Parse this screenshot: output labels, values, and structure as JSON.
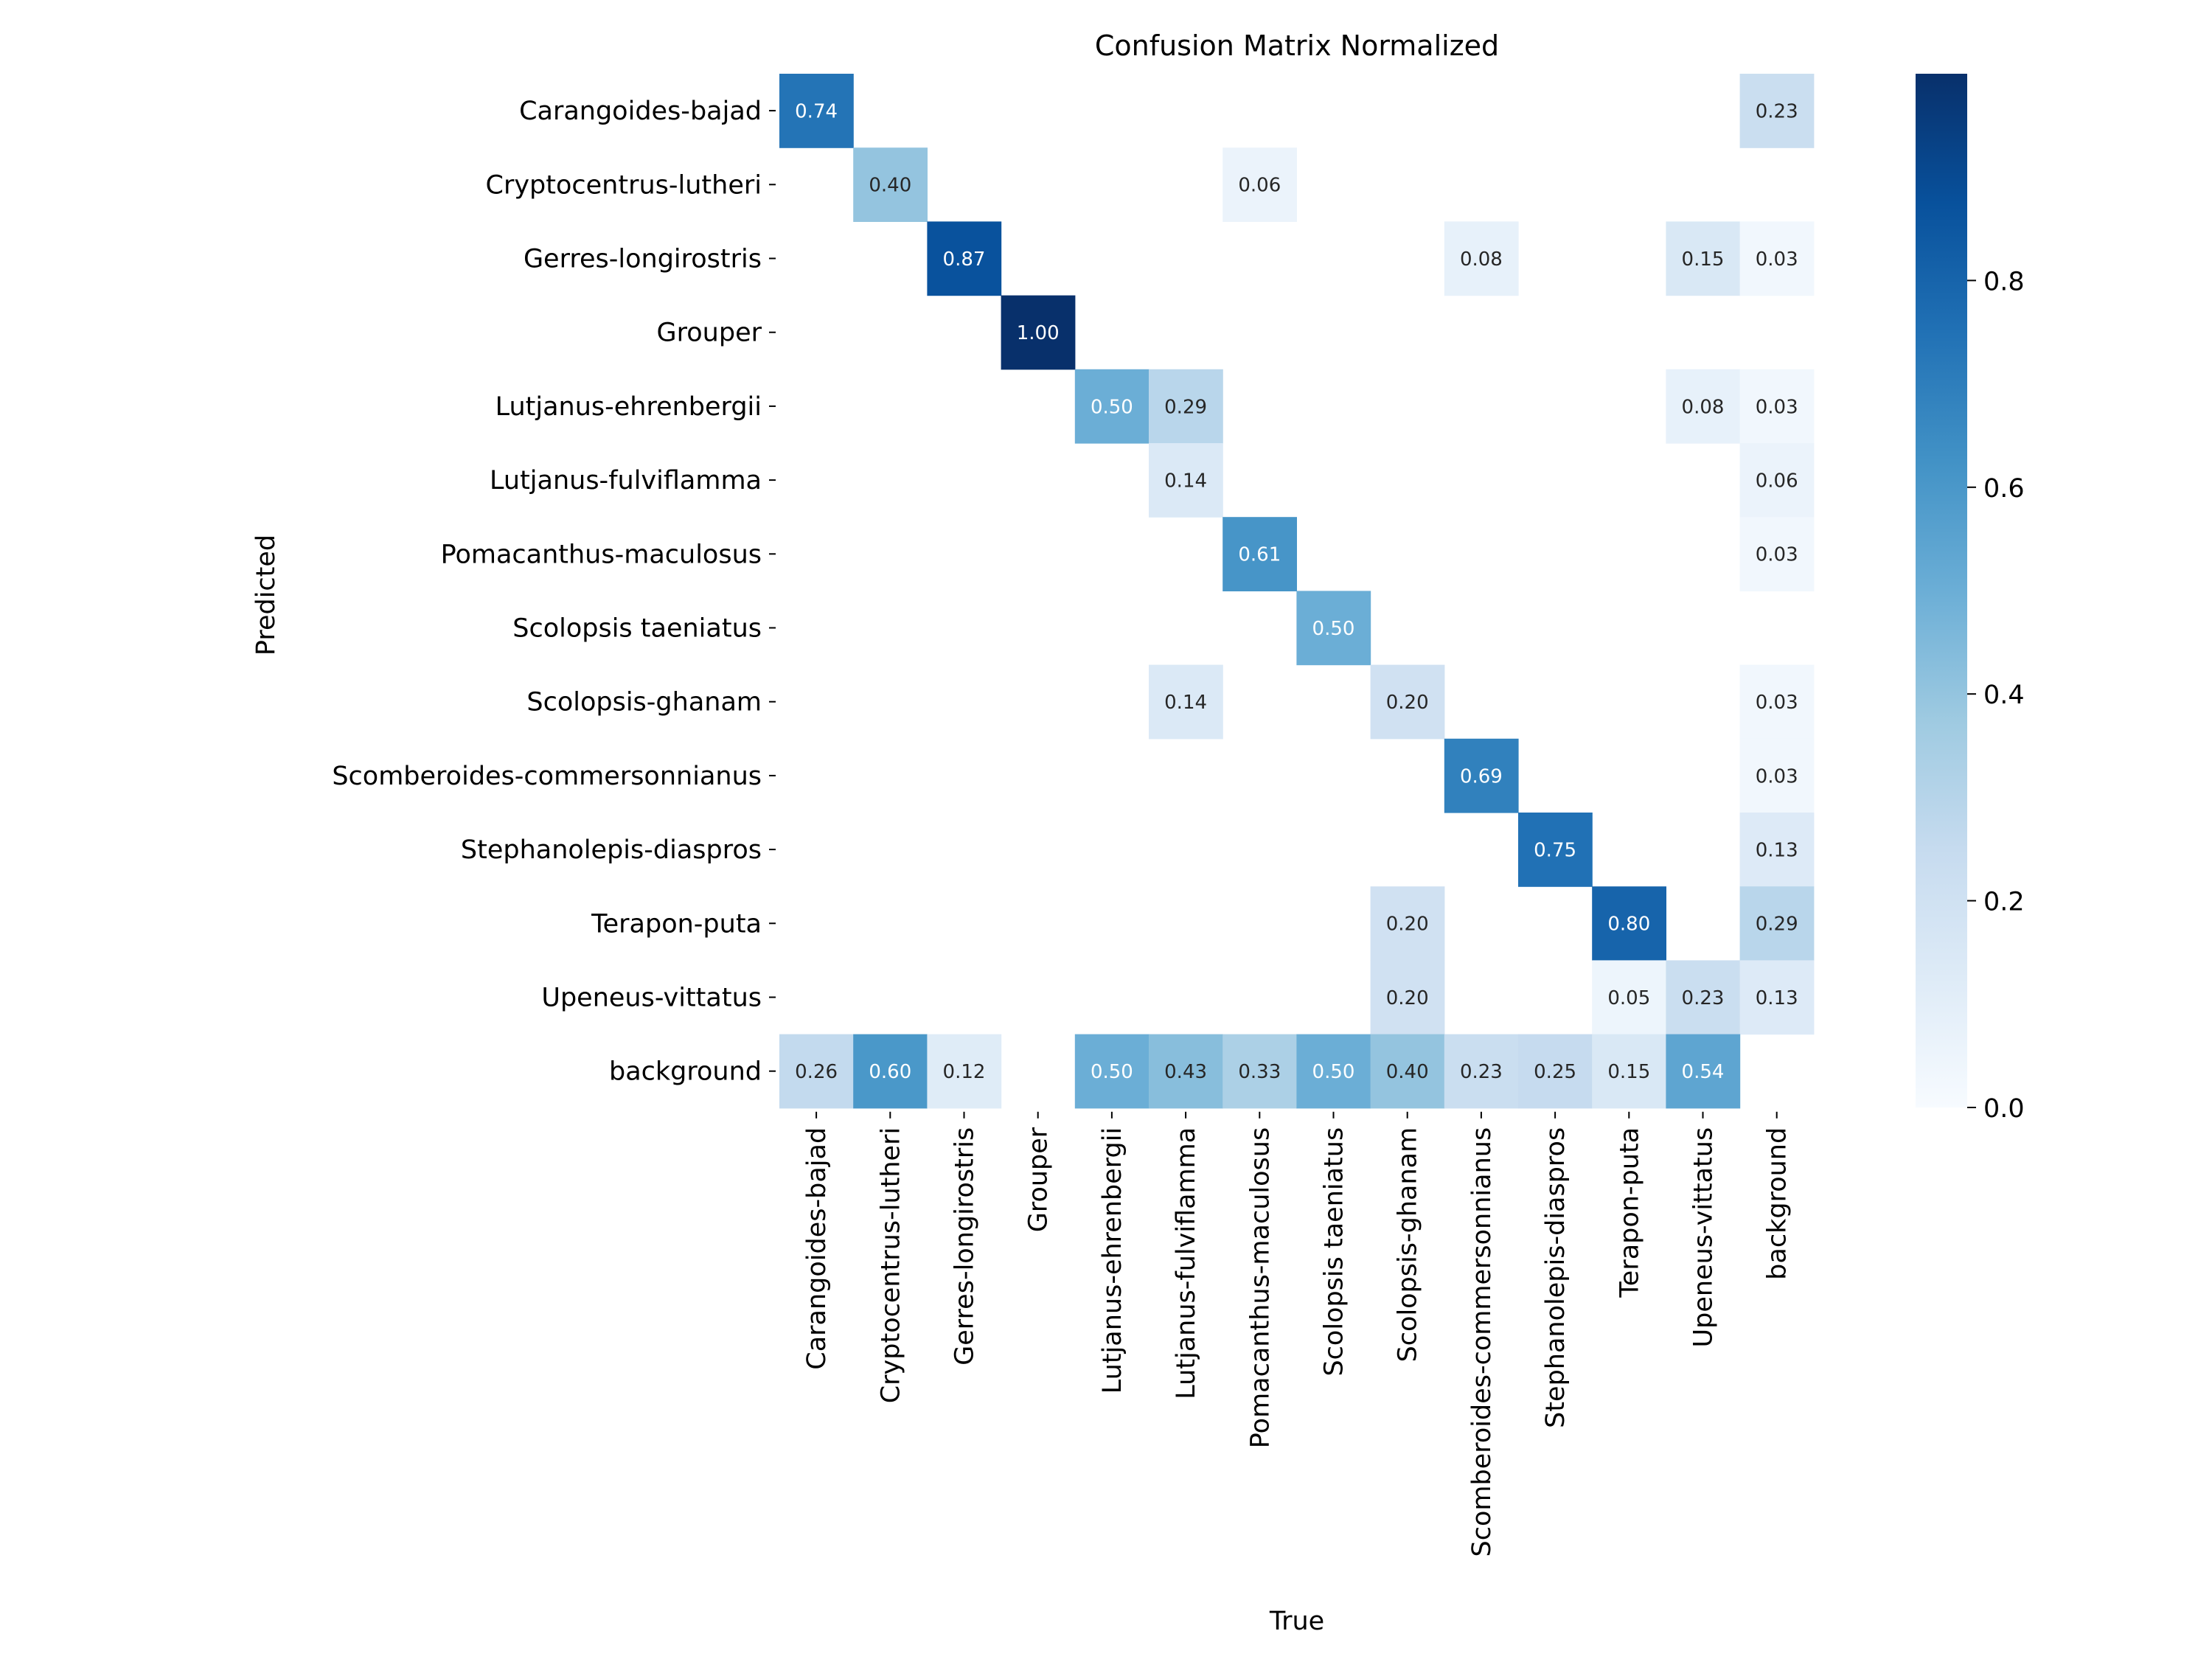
{
  "chart_data": {
    "type": "heatmap",
    "title": "Confusion Matrix Normalized",
    "xlabel": "True",
    "ylabel": "Predicted",
    "colormap": "Blues",
    "colors": {
      "low": "#f7fbff",
      "high": "#08306b"
    },
    "vmin": 0.0,
    "vmax": 1.0,
    "rows": [
      "Carangoides-bajad",
      "Cryptocentrus-lutheri",
      "Gerres-longirostris",
      "Grouper",
      "Lutjanus-ehrenbergii",
      "Lutjanus-fulviflamma",
      "Pomacanthus-maculosus",
      "Scolopsis taeniatus",
      "Scolopsis-ghanam",
      "Scomberoides-commersonnianus",
      "Stephanolepis-diaspros",
      "Terapon-puta",
      "Upeneus-vittatus",
      "background"
    ],
    "columns": [
      "Carangoides-bajad",
      "Cryptocentrus-lutheri",
      "Gerres-longirostris",
      "Grouper",
      "Lutjanus-ehrenbergii",
      "Lutjanus-fulviflamma",
      "Pomacanthus-maculosus",
      "Scolopsis taeniatus",
      "Scolopsis-ghanam",
      "Scomberoides-commersonnianus",
      "Stephanolepis-diaspros",
      "Terapon-puta",
      "Upeneus-vittatus",
      "background"
    ],
    "values": [
      [
        0.74,
        null,
        null,
        null,
        null,
        null,
        null,
        null,
        null,
        null,
        null,
        null,
        null,
        0.23
      ],
      [
        null,
        0.4,
        null,
        null,
        null,
        null,
        0.06,
        null,
        null,
        null,
        null,
        null,
        null,
        null
      ],
      [
        null,
        null,
        0.87,
        null,
        null,
        null,
        null,
        null,
        null,
        0.08,
        null,
        null,
        0.15,
        0.03
      ],
      [
        null,
        null,
        null,
        1.0,
        null,
        null,
        null,
        null,
        null,
        null,
        null,
        null,
        null,
        null
      ],
      [
        null,
        null,
        null,
        null,
        0.5,
        0.29,
        null,
        null,
        null,
        null,
        null,
        null,
        0.08,
        0.03
      ],
      [
        null,
        null,
        null,
        null,
        null,
        0.14,
        null,
        null,
        null,
        null,
        null,
        null,
        null,
        0.06
      ],
      [
        null,
        null,
        null,
        null,
        null,
        null,
        0.61,
        null,
        null,
        null,
        null,
        null,
        null,
        0.03
      ],
      [
        null,
        null,
        null,
        null,
        null,
        null,
        null,
        0.5,
        null,
        null,
        null,
        null,
        null,
        null
      ],
      [
        null,
        null,
        null,
        null,
        null,
        0.14,
        null,
        null,
        0.2,
        null,
        null,
        null,
        null,
        0.03
      ],
      [
        null,
        null,
        null,
        null,
        null,
        null,
        null,
        null,
        null,
        0.69,
        null,
        null,
        null,
        0.03
      ],
      [
        null,
        null,
        null,
        null,
        null,
        null,
        null,
        null,
        null,
        null,
        0.75,
        null,
        null,
        0.13
      ],
      [
        null,
        null,
        null,
        null,
        null,
        null,
        null,
        null,
        0.2,
        null,
        null,
        0.8,
        null,
        0.29
      ],
      [
        null,
        null,
        null,
        null,
        null,
        null,
        null,
        null,
        0.2,
        null,
        null,
        0.05,
        0.23,
        0.13
      ],
      [
        0.26,
        0.6,
        0.12,
        null,
        0.5,
        0.43,
        0.33,
        0.5,
        0.4,
        0.23,
        0.25,
        0.15,
        0.54,
        null
      ]
    ],
    "colorbar": {
      "ticks": [
        0.0,
        0.2,
        0.4,
        0.6,
        0.8
      ],
      "tick_labels": [
        "0.0",
        "0.2",
        "0.4",
        "0.6",
        "0.8"
      ]
    },
    "grid": false,
    "legend": "colorbar-right"
  }
}
